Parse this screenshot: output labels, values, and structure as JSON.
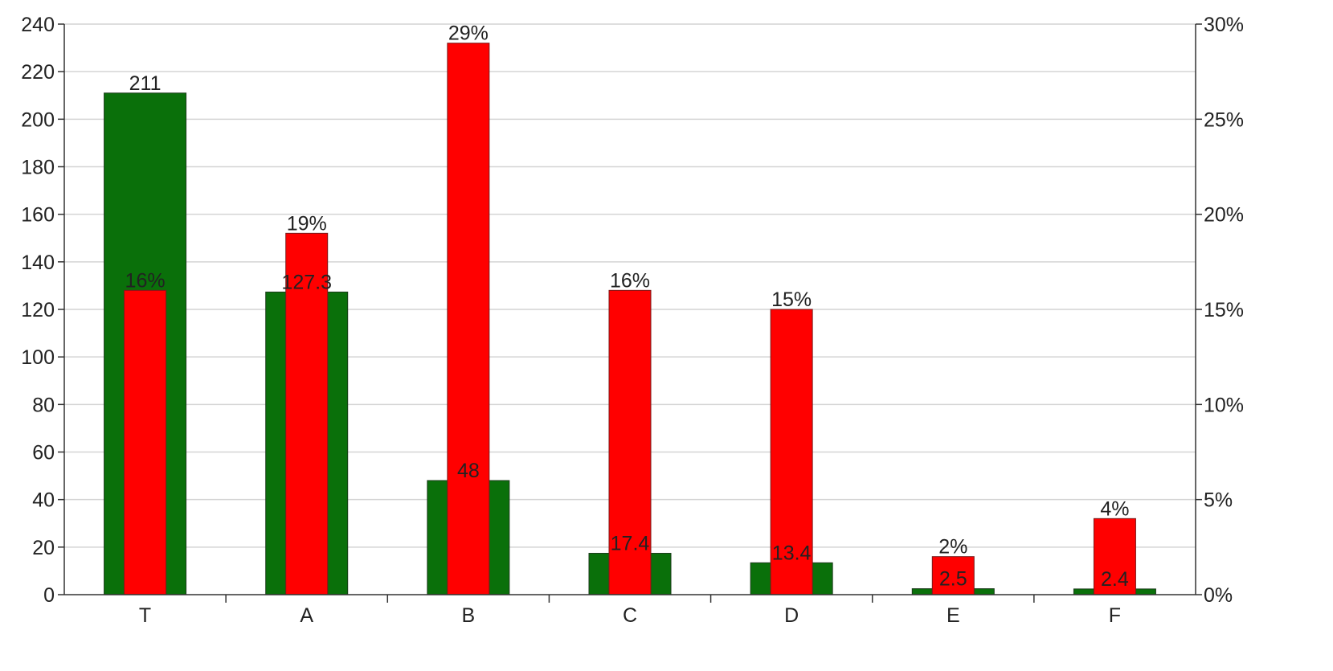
{
  "chart_data": {
    "type": "bar",
    "categories": [
      "T",
      "A",
      "B",
      "C",
      "D",
      "E",
      "F"
    ],
    "series": [
      {
        "axis": "left",
        "color": "#0a700a",
        "values": [
          211,
          127.3,
          48,
          17.4,
          13.4,
          2.5,
          2.4
        ],
        "data_labels": [
          "211",
          "127.3",
          "48",
          "17.4",
          "13.4",
          "2.5",
          "2.4"
        ]
      },
      {
        "axis": "right",
        "color": "#ff0000",
        "values": [
          16,
          19,
          29,
          16,
          15,
          2,
          4
        ],
        "data_labels": [
          "16%",
          "19%",
          "29%",
          "16%",
          "15%",
          "2%",
          "4%"
        ]
      }
    ],
    "y_left": {
      "ylim": [
        0,
        240
      ],
      "ticks": [
        "0",
        "20",
        "40",
        "60",
        "80",
        "100",
        "120",
        "140",
        "160",
        "180",
        "200",
        "220",
        "240"
      ]
    },
    "y_right": {
      "ylim": [
        0,
        30
      ],
      "ticks": [
        "0%",
        "5%",
        "10%",
        "15%",
        "20%",
        "25%",
        "30%"
      ]
    },
    "grid": true,
    "legend": "none"
  }
}
